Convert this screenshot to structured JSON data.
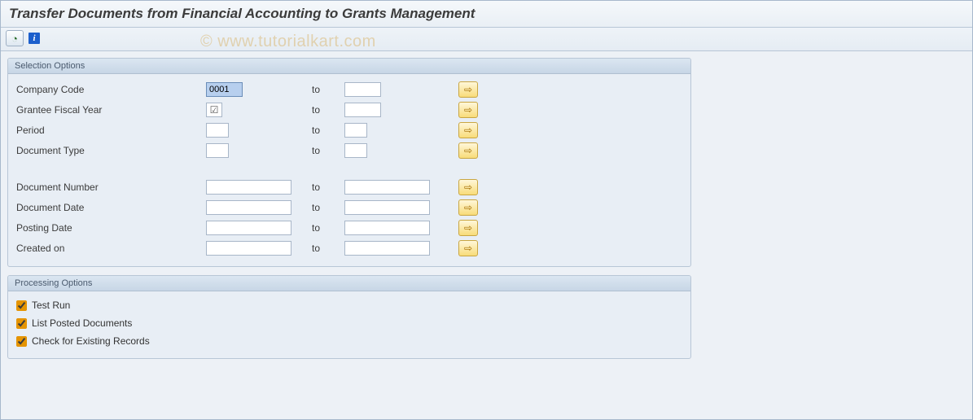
{
  "title": "Transfer Documents from Financial Accounting to Grants Management",
  "watermark": "© www.tutorialkart.com",
  "selection": {
    "group_title": "Selection Options",
    "to_label": "to",
    "rows_block1": [
      {
        "name": "company-code",
        "label": "Company Code",
        "from": "0001",
        "to": "",
        "from_width": "short",
        "to_width": "short",
        "filled": true
      },
      {
        "name": "grantee-fiscal-year",
        "label": "Grantee Fiscal Year",
        "from": "",
        "to": "",
        "from_width": "check",
        "to_width": "short",
        "checked": true
      },
      {
        "name": "period",
        "label": "Period",
        "from": "",
        "to": "",
        "from_width": "xshort",
        "to_width": "xshort"
      },
      {
        "name": "document-type",
        "label": "Document Type",
        "from": "",
        "to": "",
        "from_width": "xshort",
        "to_width": "xshort"
      }
    ],
    "rows_block2": [
      {
        "name": "document-number",
        "label": "Document Number",
        "from": "",
        "to": "",
        "from_width": "long",
        "to_width": "long"
      },
      {
        "name": "document-date",
        "label": "Document Date",
        "from": "",
        "to": "",
        "from_width": "long",
        "to_width": "long"
      },
      {
        "name": "posting-date",
        "label": "Posting Date",
        "from": "",
        "to": "",
        "from_width": "long",
        "to_width": "long"
      },
      {
        "name": "created-on",
        "label": "Created on",
        "from": "",
        "to": "",
        "from_width": "long",
        "to_width": "long"
      }
    ]
  },
  "processing": {
    "group_title": "Processing Options",
    "items": [
      {
        "name": "test-run",
        "label": "Test Run",
        "checked": true
      },
      {
        "name": "list-posted-documents",
        "label": "List Posted Documents",
        "checked": true
      },
      {
        "name": "check-existing-records",
        "label": "Check for Existing Records",
        "checked": true
      }
    ]
  },
  "colors": {
    "panel_bg": "#e8eef5",
    "border": "#b8c6d6",
    "sel_btn_bg": "#f8dc7a"
  }
}
